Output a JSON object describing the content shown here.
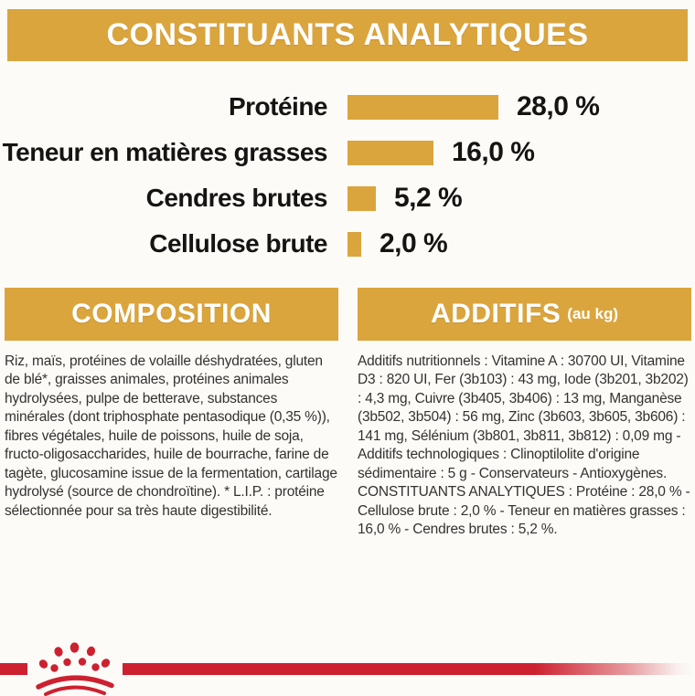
{
  "colors": {
    "gold": "#dba53d",
    "red": "#cd2130",
    "text_dark": "#151412",
    "body_text": "#343230",
    "banner_text": "#ffffff",
    "background": "#fcfbf8"
  },
  "header": {
    "title": "CONSTITUANTS ANALYTIQUES"
  },
  "chart_data": {
    "type": "bar",
    "orientation": "horizontal",
    "title": "CONSTITUANTS ANALYTIQUES",
    "categories": [
      "Protéine",
      "Teneur en matières grasses",
      "Cendres brutes",
      "Cellulose brute"
    ],
    "values": [
      28.0,
      16.0,
      5.2,
      2.0
    ],
    "value_labels": [
      "28,0 %",
      "16,0 %",
      "5,2 %",
      "2,0 %"
    ],
    "unit": "%",
    "bar_color": "#dba53d",
    "xlim": [
      0,
      30
    ],
    "grid": false,
    "legend": false
  },
  "composition": {
    "title": "COMPOSITION",
    "body": "Riz, maïs, protéines de volaille déshydratées, gluten de blé*, graisses animales, protéines animales hydrolysées, pulpe de betterave, substances minérales (dont triphosphate pentasodique (0,35 %)), fibres végétales, huile de poissons, huile de soja, fructo-oligosaccharides, huile de bourrache, farine de tagète, glucosamine issue de la fermentation, cartilage hydrolysé (source de chondroïtine). * L.I.P. : protéine sélectionnée pour sa très haute digestibilité."
  },
  "additifs": {
    "title": "ADDITIFS",
    "title_suffix": "(au kg)",
    "body": "Additifs nutritionnels : Vitamine A : 30700 UI, Vitamine D3 : 820 UI, Fer (3b103) : 43 mg, Iode (3b201, 3b202) : 4,3 mg, Cuivre (3b405, 3b406) : 13 mg, Manganèse (3b502, 3b504) : 56 mg, Zinc (3b603, 3b605, 3b606) : 141 mg, Sélénium (3b801, 3b811, 3b812) : 0,09 mg - Additifs technologiques : Clinoptilolite d'origine sédimentaire : 5 g - Conservateurs - Antioxygènes. CONSTITUANTS ANALYTIQUES : Protéine : 28,0 % - Cellulose brute : 2,0 % - Teneur en matières grasses : 16,0 % - Cendres brutes : 5,2 %."
  },
  "footer": {
    "brand_logo": "royal-canin-crown"
  }
}
